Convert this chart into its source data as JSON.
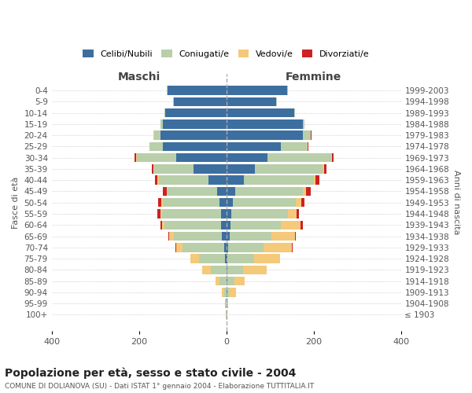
{
  "age_groups": [
    "100+",
    "95-99",
    "90-94",
    "85-89",
    "80-84",
    "75-79",
    "70-74",
    "65-69",
    "60-64",
    "55-59",
    "50-54",
    "45-49",
    "40-44",
    "35-39",
    "30-34",
    "25-29",
    "20-24",
    "15-19",
    "10-14",
    "5-9",
    "0-4"
  ],
  "birth_years": [
    "≤ 1903",
    "1904-1908",
    "1909-1913",
    "1914-1918",
    "1919-1923",
    "1924-1928",
    "1929-1933",
    "1934-1938",
    "1939-1943",
    "1944-1948",
    "1949-1953",
    "1954-1958",
    "1959-1963",
    "1964-1968",
    "1969-1973",
    "1974-1978",
    "1979-1983",
    "1984-1988",
    "1989-1993",
    "1994-1998",
    "1999-2003"
  ],
  "males": {
    "celibi": [
      0,
      0,
      0,
      0,
      0,
      2,
      5,
      10,
      12,
      12,
      15,
      20,
      40,
      75,
      115,
      145,
      150,
      145,
      140,
      120,
      135
    ],
    "coniugati": [
      1,
      2,
      5,
      15,
      35,
      60,
      95,
      110,
      130,
      135,
      130,
      115,
      115,
      90,
      90,
      30,
      15,
      5,
      2,
      2,
      2
    ],
    "vedovi": [
      0,
      1,
      5,
      10,
      20,
      20,
      15,
      10,
      5,
      3,
      3,
      2,
      2,
      1,
      1,
      0,
      1,
      0,
      0,
      0,
      0
    ],
    "divorziati": [
      0,
      0,
      0,
      0,
      0,
      1,
      2,
      3,
      4,
      8,
      8,
      8,
      6,
      5,
      4,
      1,
      1,
      0,
      0,
      0,
      0
    ]
  },
  "females": {
    "nubili": [
      0,
      1,
      2,
      3,
      3,
      3,
      5,
      8,
      10,
      12,
      15,
      20,
      40,
      65,
      95,
      125,
      175,
      175,
      155,
      115,
      140
    ],
    "coniugate": [
      1,
      2,
      5,
      15,
      35,
      60,
      80,
      95,
      115,
      130,
      145,
      155,
      160,
      155,
      145,
      60,
      18,
      5,
      2,
      2,
      2
    ],
    "vedove": [
      1,
      2,
      15,
      25,
      55,
      60,
      65,
      55,
      45,
      20,
      12,
      8,
      5,
      4,
      2,
      1,
      1,
      0,
      0,
      0,
      0
    ],
    "divorziate": [
      0,
      0,
      0,
      0,
      0,
      1,
      3,
      2,
      5,
      5,
      8,
      10,
      8,
      6,
      3,
      2,
      1,
      0,
      0,
      0,
      0
    ]
  },
  "colors": {
    "celibi": "#3d6ea0",
    "coniugati": "#b8cfaa",
    "vedovi": "#f5c97a",
    "divorziati": "#cc2222"
  },
  "title": "Popolazione per età, sesso e stato civile - 2004",
  "subtitle": "COMUNE DI DOLIANOVA (SU) - Dati ISTAT 1° gennaio 2004 - Elaborazione TUTTITALIA.IT",
  "xlabel_left": "Maschi",
  "xlabel_right": "Femmine",
  "ylabel_left": "Fasce di età",
  "ylabel_right": "Anni di nascita",
  "xlim": 400,
  "background_color": "#ffffff",
  "grid_color": "#cccccc"
}
